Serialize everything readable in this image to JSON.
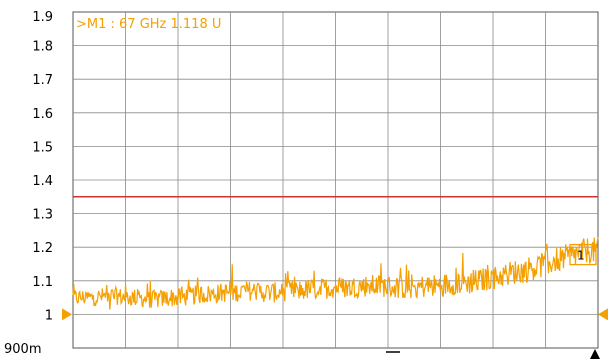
{
  "chart_data": {
    "type": "line",
    "title": "",
    "xlabel": "",
    "ylabel": "",
    "ylim": [
      0.9,
      1.9
    ],
    "y_ticks": [
      {
        "value": 1.9,
        "label": "1.9"
      },
      {
        "value": 1.8,
        "label": "1.8"
      },
      {
        "value": 1.7,
        "label": "1.7"
      },
      {
        "value": 1.6,
        "label": "1.6"
      },
      {
        "value": 1.5,
        "label": "1.5"
      },
      {
        "value": 1.4,
        "label": "1.4"
      },
      {
        "value": 1.3,
        "label": "1.3"
      },
      {
        "value": 1.2,
        "label": "1.2"
      },
      {
        "value": 1.1,
        "label": "1.1"
      },
      {
        "value": 1.0,
        "label": "1"
      },
      {
        "value": 0.9,
        "label": "900m"
      }
    ],
    "x_divisions": 10,
    "grid": true,
    "limit_line": {
      "value": 1.35,
      "color": "#cc3333"
    },
    "reference_level": 1.0,
    "marker": {
      "id": "1",
      "readout": ">M1 :  67 GHz  1.118  U",
      "y": 1.118
    },
    "series": [
      {
        "color": "#f5a000",
        "values": [
          1.05,
          1.05,
          1.05,
          1.055,
          1.055,
          1.05,
          1.05,
          1.045,
          1.045,
          1.05,
          1.05,
          1.055,
          1.06,
          1.06,
          1.065,
          1.065,
          1.07,
          1.07,
          1.065,
          1.065,
          1.07,
          1.07,
          1.075,
          1.075,
          1.08,
          1.08,
          1.08,
          1.085,
          1.085,
          1.085,
          1.08,
          1.08,
          1.08,
          1.085,
          1.085,
          1.09,
          1.095,
          1.095,
          1.1,
          1.11,
          1.115,
          1.125,
          1.13,
          1.14,
          1.15,
          1.16,
          1.17,
          1.18,
          1.19,
          1.19
        ]
      }
    ]
  }
}
